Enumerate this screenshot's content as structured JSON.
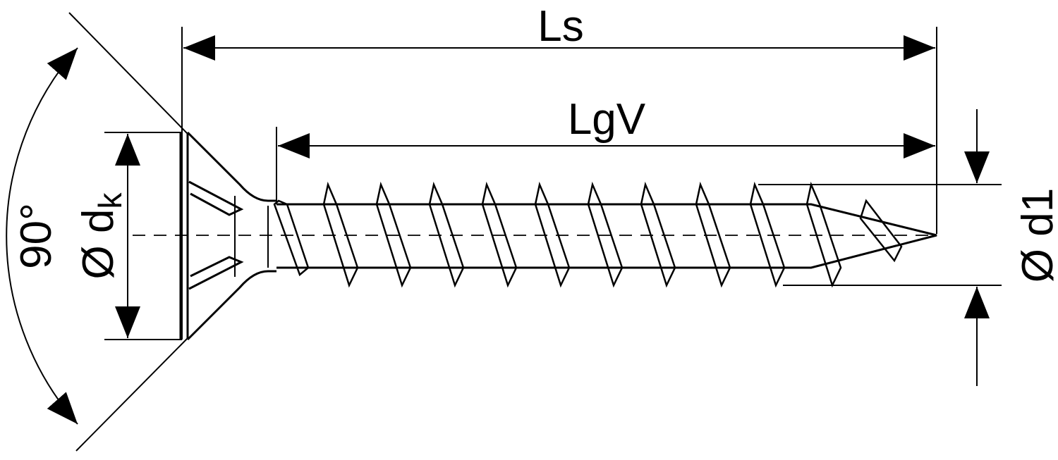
{
  "labels": {
    "overall_length": "Ls",
    "thread_length": "LgV",
    "head_angle": "90°",
    "head_diameter_symbol": "Ø d",
    "head_diameter_subscript": "k",
    "thread_diameter": "Ø d1"
  },
  "colors": {
    "line": "#000000",
    "background": "#ffffff"
  }
}
